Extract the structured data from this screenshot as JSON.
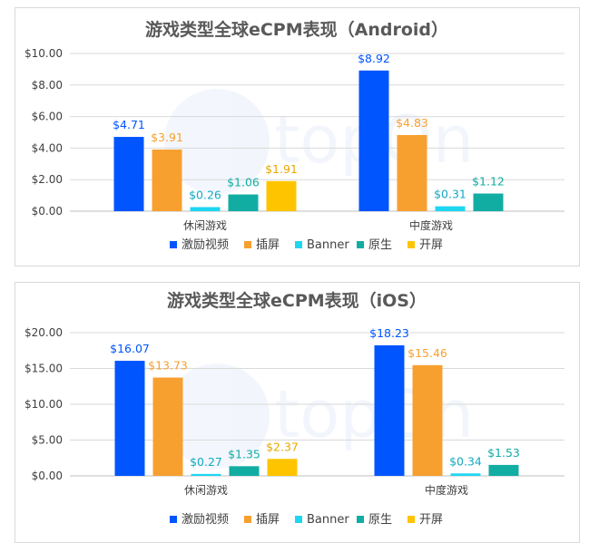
{
  "watermark": {
    "text": "topOn"
  },
  "chart_data": [
    {
      "type": "bar",
      "title": "游戏类型全球eCPM表现（Android）",
      "categories": [
        "休闲游戏",
        "中度游戏"
      ],
      "y_tick_labels": [
        "$0.00",
        "$2.00",
        "$4.00",
        "$6.00",
        "$8.00",
        "$10.00"
      ],
      "ylim": [
        0,
        10
      ],
      "grid": true,
      "legend_position": "bottom",
      "series": [
        {
          "name": "激励视频",
          "color": "#0055ff",
          "values": [
            4.71,
            8.92
          ],
          "labels": [
            "$4.71",
            "$8.92"
          ]
        },
        {
          "name": "插屏",
          "color": "#f7a030",
          "values": [
            3.91,
            4.83
          ],
          "labels": [
            "$3.91",
            "$4.83"
          ]
        },
        {
          "name": "Banner",
          "color": "#1dd6f2",
          "values": [
            0.26,
            0.31
          ],
          "labels": [
            "$0.26",
            "$0.31"
          ]
        },
        {
          "name": "原生",
          "color": "#11ada3",
          "values": [
            1.06,
            1.12
          ],
          "labels": [
            "$1.06",
            "$1.12"
          ]
        },
        {
          "name": "开屏",
          "color": "#ffc400",
          "values": [
            1.91,
            null
          ],
          "labels": [
            "$1.91",
            null
          ]
        }
      ]
    },
    {
      "type": "bar",
      "title": "游戏类型全球eCPM表现（iOS）",
      "categories": [
        "休闲游戏",
        "中度游戏"
      ],
      "y_tick_labels": [
        "$0.00",
        "$5.00",
        "$10.00",
        "$15.00",
        "$20.00"
      ],
      "ylim": [
        0,
        20
      ],
      "grid": true,
      "legend_position": "bottom",
      "series": [
        {
          "name": "激励视频",
          "color": "#0055ff",
          "values": [
            16.07,
            18.23
          ],
          "labels": [
            "$16.07",
            "$18.23"
          ]
        },
        {
          "name": "插屏",
          "color": "#f7a030",
          "values": [
            13.73,
            15.46
          ],
          "labels": [
            "$13.73",
            "$15.46"
          ]
        },
        {
          "name": "Banner",
          "color": "#1dd6f2",
          "values": [
            0.27,
            0.34
          ],
          "labels": [
            "$0.27",
            "$0.34"
          ]
        },
        {
          "name": "原生",
          "color": "#11ada3",
          "values": [
            1.35,
            1.53
          ],
          "labels": [
            "$1.35",
            "$1.53"
          ]
        },
        {
          "name": "开屏",
          "color": "#ffc400",
          "values": [
            2.37,
            null
          ],
          "labels": [
            "$2.37",
            null
          ]
        }
      ]
    }
  ]
}
